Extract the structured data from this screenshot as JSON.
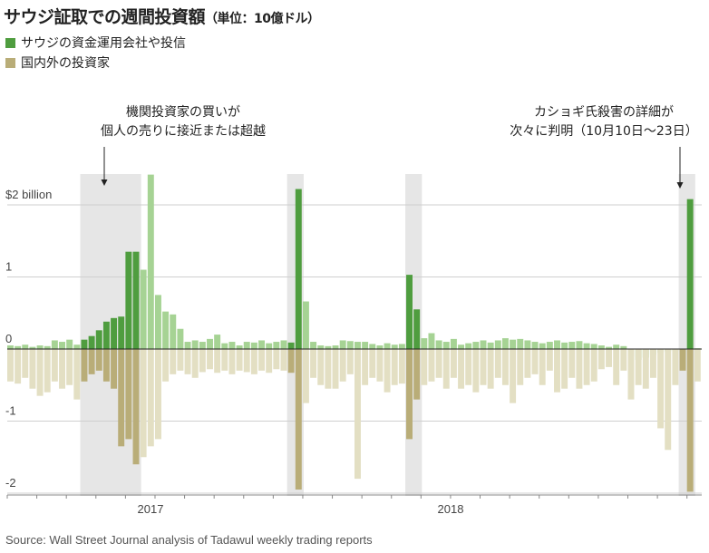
{
  "header": {
    "title": "サウジ証取での週間投資額",
    "unit": "（単位：10億ドル）"
  },
  "legend": [
    {
      "label": "サウジの資金運用会社や投信",
      "color": "#4f9d3f"
    },
    {
      "label": "国内外の投資家",
      "color": "#b9ad78"
    }
  ],
  "source": "Source: Wall Street Journal analysis of Tadawul weekly trading reports",
  "colors": {
    "green": "#4f9d3f",
    "green_light": "#a6d394",
    "tan": "#b9ad78",
    "tan_light": "#e3dfc3",
    "highlight": "#e6e6e6"
  },
  "annotations": [
    {
      "lines": [
        "機関投資家の買いが",
        "個人の売りに接近または超越"
      ]
    },
    {
      "lines": [
        "カショギ氏殺害の詳細が",
        "次々に判明（10月10日〜23日）"
      ]
    }
  ],
  "chart_data": {
    "type": "bar",
    "title": "サウジ証取での週間投資額（単位：10億ドル）",
    "unit": "10億ドル",
    "ylim": [
      -2,
      2.4
    ],
    "yticks": [
      {
        "value": 2,
        "label": "$2 billion"
      },
      {
        "value": 1,
        "label": "1"
      },
      {
        "value": 0,
        "label": "0"
      },
      {
        "value": -1,
        "label": "-1"
      },
      {
        "value": -2,
        "label": "-2"
      }
    ],
    "xticks": [
      "2017",
      "2018"
    ],
    "grid": true,
    "highlight_ranges_weeks": [
      [
        10,
        17
      ],
      [
        38,
        39
      ],
      [
        54,
        55
      ],
      [
        91,
        92
      ]
    ],
    "series": [
      {
        "name": "サウジの資金運用会社や投信",
        "values": [
          0.05,
          0.04,
          0.06,
          0.03,
          0.05,
          0.04,
          0.12,
          0.1,
          0.13,
          0.06,
          0.13,
          0.18,
          0.26,
          0.38,
          0.43,
          0.45,
          1.35,
          1.35,
          1.1,
          2.42,
          0.75,
          0.52,
          0.48,
          0.28,
          0.1,
          0.12,
          0.1,
          0.14,
          0.2,
          0.08,
          0.1,
          0.05,
          0.1,
          0.09,
          0.12,
          0.08,
          0.1,
          0.12,
          0.09,
          2.22,
          0.66,
          0.1,
          0.05,
          0.04,
          0.05,
          0.12,
          0.11,
          0.1,
          0.1,
          0.07,
          0.05,
          0.08,
          0.06,
          0.07,
          1.03,
          0.55,
          0.15,
          0.22,
          0.12,
          0.1,
          0.14,
          0.06,
          0.08,
          0.1,
          0.12,
          0.09,
          0.12,
          0.15,
          0.13,
          0.14,
          0.12,
          0.1,
          0.08,
          0.1,
          0.12,
          0.09,
          0.1,
          0.11,
          0.08,
          0.07,
          0.05,
          0.03,
          0.06,
          0.04,
          -0.1,
          -0.15,
          -0.12,
          -0.08,
          -0.05,
          -0.03,
          -0.02,
          -0.01,
          2.08,
          0.01
        ]
      },
      {
        "name": "国内外の投資家",
        "values": [
          -0.45,
          -0.48,
          -0.4,
          -0.55,
          -0.65,
          -0.6,
          -0.45,
          -0.55,
          -0.5,
          -0.7,
          -0.45,
          -0.35,
          -0.3,
          -0.45,
          -0.55,
          -1.35,
          -1.25,
          -1.6,
          -1.5,
          -1.35,
          -1.25,
          -0.45,
          -0.35,
          -0.3,
          -0.35,
          -0.4,
          -0.32,
          -0.28,
          -0.33,
          -0.3,
          -0.35,
          -0.3,
          -0.32,
          -0.35,
          -0.3,
          -0.33,
          -0.28,
          -0.3,
          -0.33,
          -1.95,
          -0.75,
          -0.4,
          -0.5,
          -0.55,
          -0.55,
          -0.45,
          -0.35,
          -1.8,
          -0.5,
          -0.4,
          -0.45,
          -0.6,
          -0.5,
          -0.48,
          -1.25,
          -0.7,
          -0.5,
          -0.45,
          -0.4,
          -0.55,
          -0.4,
          -0.55,
          -0.5,
          -0.6,
          -0.5,
          -0.55,
          -0.4,
          -0.5,
          -0.75,
          -0.5,
          -0.4,
          -0.35,
          -0.5,
          -0.3,
          -0.6,
          -0.55,
          -0.4,
          -0.55,
          -0.5,
          -0.45,
          -0.28,
          -0.25,
          -0.5,
          -0.3,
          -0.7,
          -0.5,
          -0.55,
          -0.4,
          -1.1,
          -1.4,
          -0.5,
          -0.3,
          -1.98,
          -0.45
        ]
      }
    ]
  }
}
